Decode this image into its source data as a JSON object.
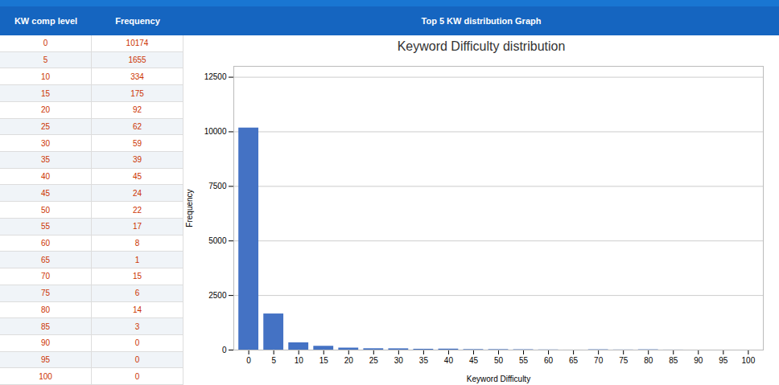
{
  "chart_data": {
    "type": "bar",
    "title": "Keyword Difficulty distribution",
    "x": [
      0,
      5,
      10,
      15,
      20,
      25,
      30,
      35,
      40,
      45,
      50,
      55,
      60,
      65,
      70,
      75,
      80,
      85,
      90,
      95,
      100
    ],
    "values": [
      10174,
      1655,
      334,
      175,
      92,
      62,
      59,
      39,
      45,
      24,
      22,
      17,
      8,
      1,
      15,
      6,
      14,
      3,
      0,
      0,
      0
    ],
    "color": "#4472c4",
    "xlabel": "Keyword Difficulty",
    "ylabel": "Frequency",
    "xlim": [
      -3,
      103
    ],
    "xticks": [
      0,
      5,
      10,
      15,
      20,
      25,
      30,
      35,
      40,
      45,
      50,
      55,
      60,
      65,
      70,
      75,
      80,
      85,
      90,
      95,
      100
    ],
    "ylim": [
      0,
      13000
    ],
    "yticks": [
      0,
      2500,
      5000,
      7500,
      10000,
      12500
    ],
    "grid": true,
    "annotations": [
      "KW comp level",
      "Frequency",
      "Top 5 KW distribution Graph"
    ]
  }
}
